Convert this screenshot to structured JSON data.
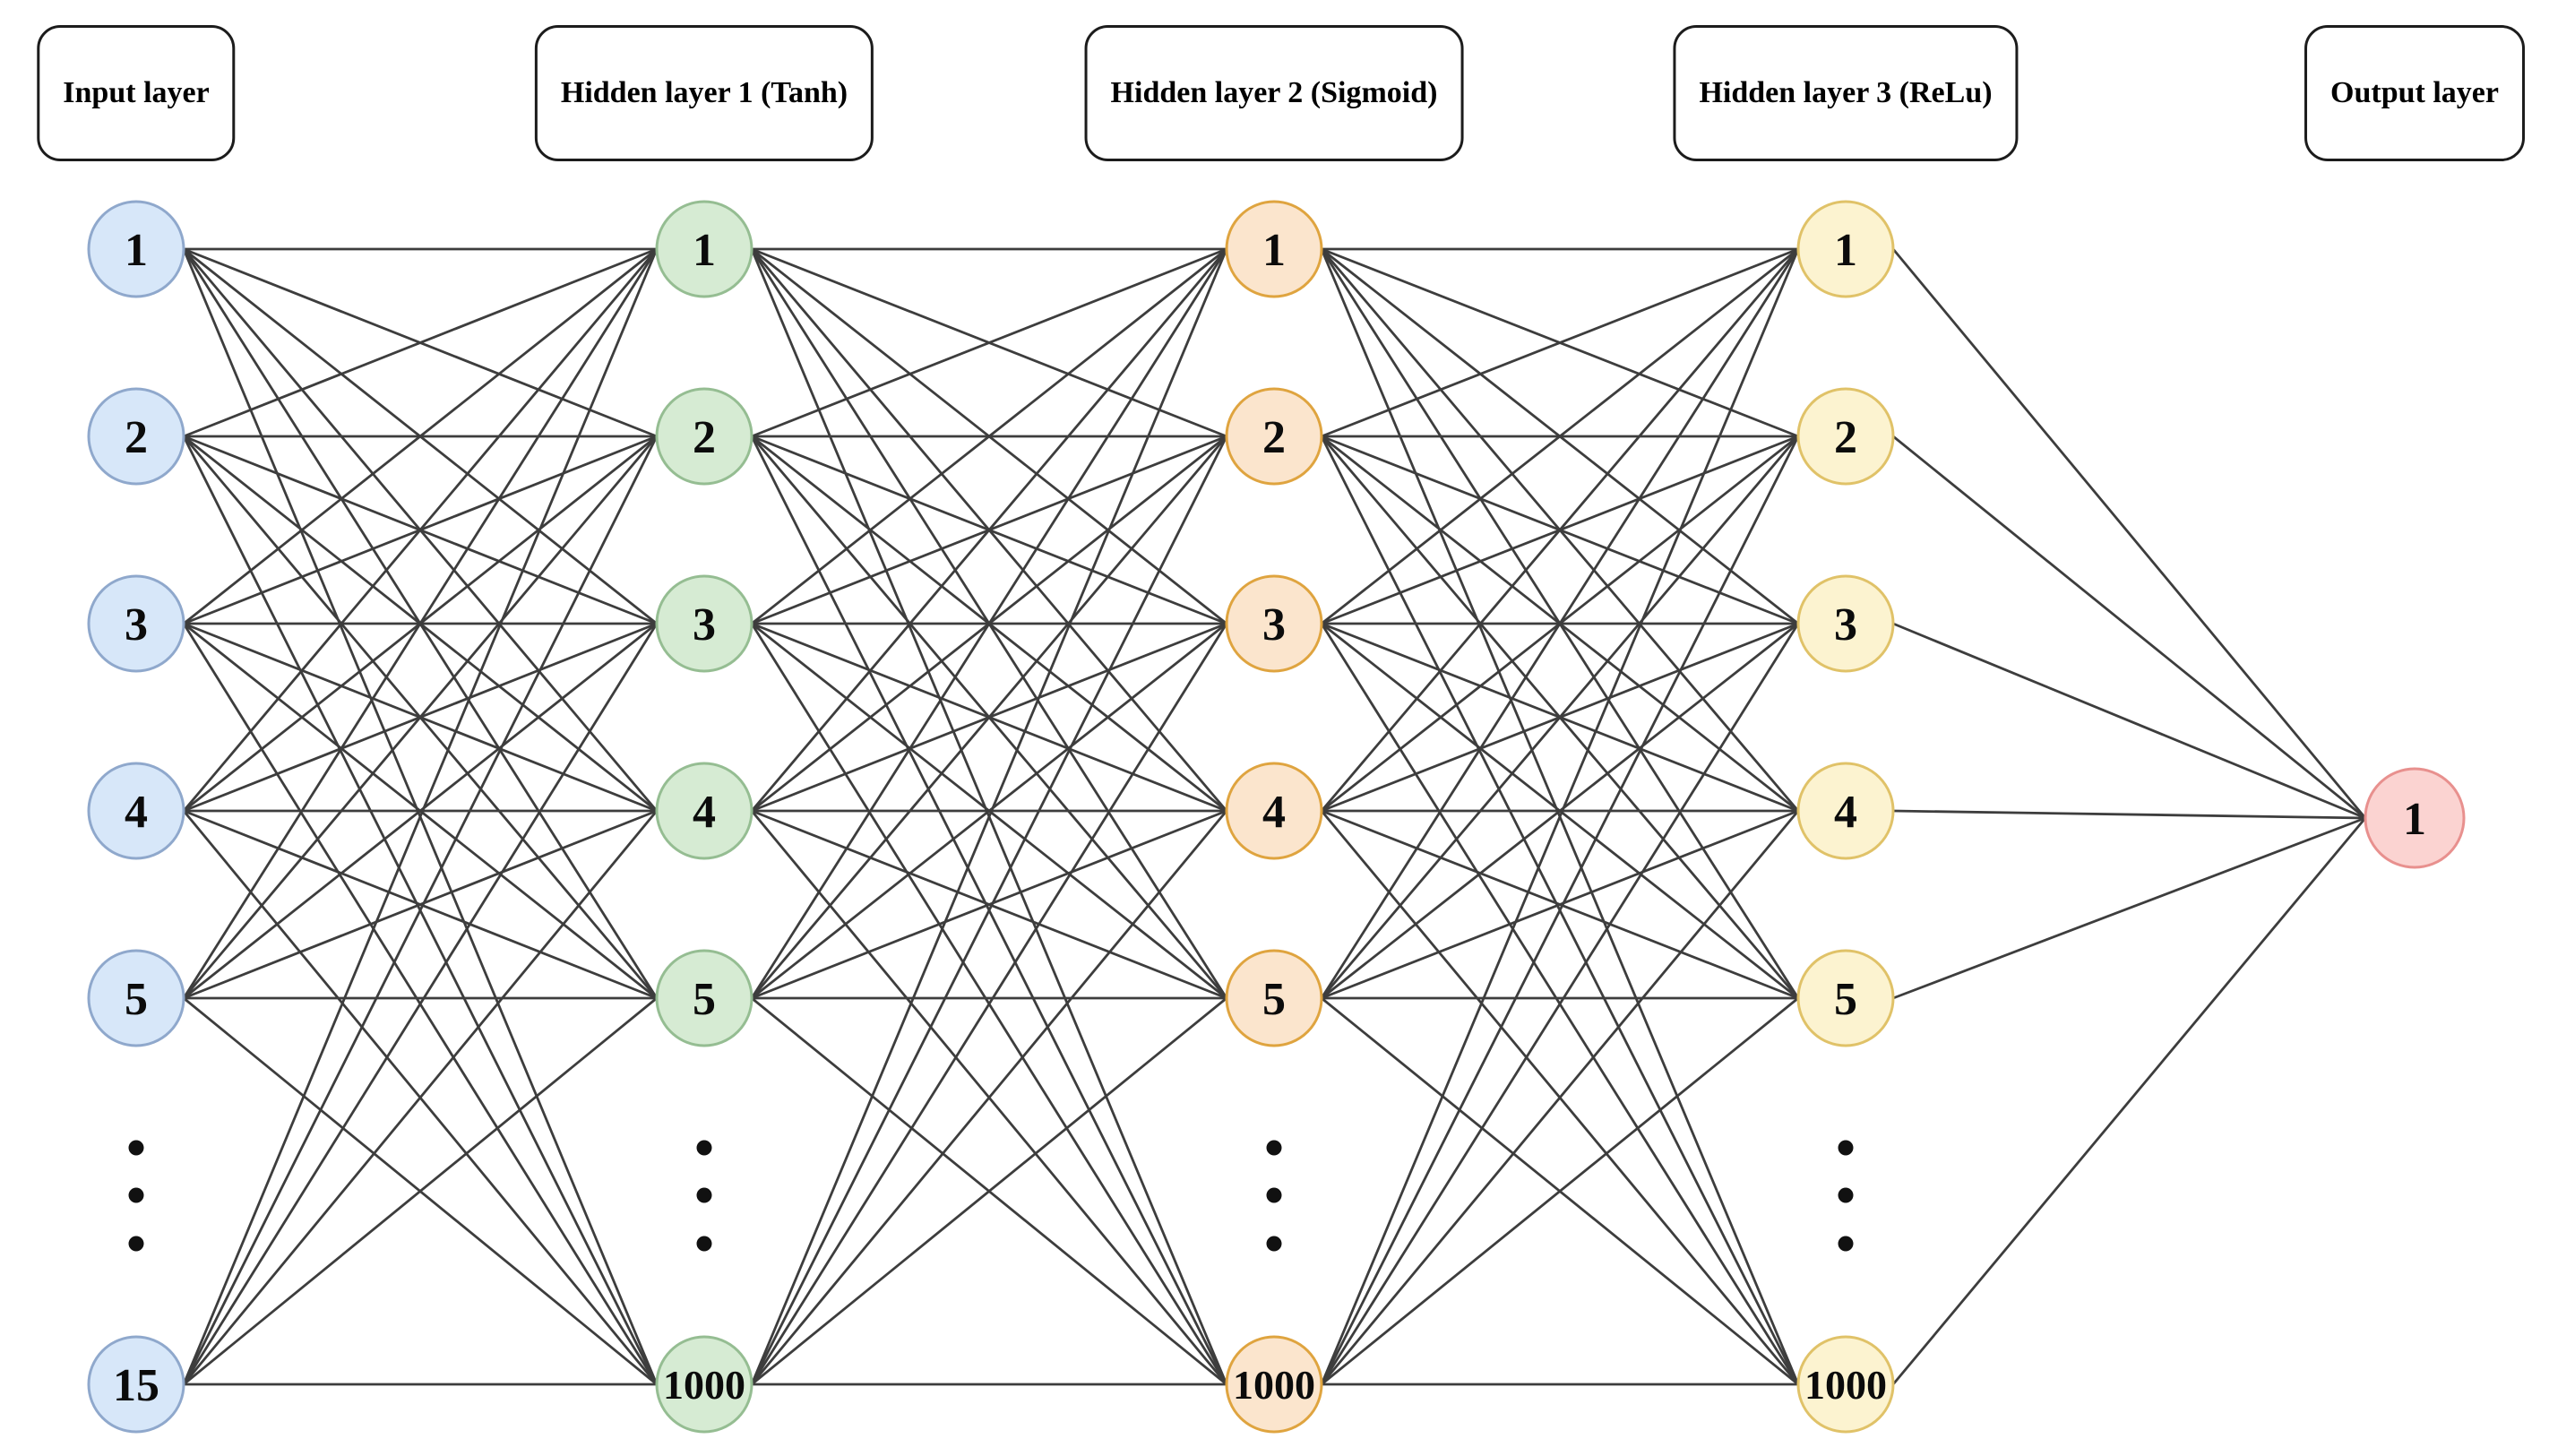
{
  "layers": [
    {
      "id": "input",
      "title": "Input layer",
      "node_labels": [
        "1",
        "2",
        "3",
        "4",
        "5"
      ],
      "bottom_node_label": "15",
      "has_ellipsis": true,
      "node_fill": "#D7E7F9",
      "node_stroke": "#8FA8CC"
    },
    {
      "id": "hidden1",
      "title": "Hidden layer 1 (Tanh)",
      "node_labels": [
        "1",
        "2",
        "3",
        "4",
        "5"
      ],
      "bottom_node_label": "1000",
      "has_ellipsis": true,
      "node_fill": "#D6EBD3",
      "node_stroke": "#95BD92"
    },
    {
      "id": "hidden2",
      "title": "Hidden layer 2 (Sigmoid)",
      "node_labels": [
        "1",
        "2",
        "3",
        "4",
        "5"
      ],
      "bottom_node_label": "1000",
      "has_ellipsis": true,
      "node_fill": "#FBE5CD",
      "node_stroke": "#DFA43F"
    },
    {
      "id": "hidden3",
      "title": "Hidden layer 3 (ReLu)",
      "node_labels": [
        "1",
        "2",
        "3",
        "4",
        "5"
      ],
      "bottom_node_label": "1000",
      "has_ellipsis": true,
      "node_fill": "#FCF3D0",
      "node_stroke": "#E0C268"
    },
    {
      "id": "output",
      "title": "Output layer",
      "node_labels": [
        "1"
      ],
      "bottom_node_label": null,
      "has_ellipsis": false,
      "node_fill": "#FBD3D1",
      "node_stroke": "#E8908E"
    }
  ],
  "colors": {
    "edge": "#3D3D3D",
    "ellipsis_dot": "#111111",
    "node_text": "#0b0b0b",
    "box_border": "#1c1c1c",
    "background": "#ffffff"
  }
}
